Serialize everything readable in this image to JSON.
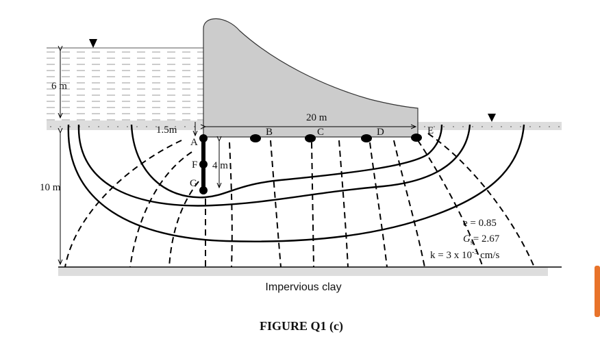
{
  "figure": {
    "labels": {
      "water_depth": "6 m",
      "pile_offset": "1.5m",
      "dam_width": "20 m",
      "pile_depth": "4 m",
      "soil_depth": "10 m"
    },
    "points": [
      "A",
      "B",
      "C",
      "D",
      "E",
      "F",
      "G"
    ],
    "properties": {
      "e": "e = 0.85",
      "gs": {
        "symbol": "G",
        "subscript": "s",
        "rest": "= 2.67"
      },
      "k": {
        "prefix": "k = 3 x 10",
        "superscript": "-3",
        "suffix": " cm/s"
      }
    },
    "base_layer": "Impervious clay",
    "caption": "FIGURE Q1 (c)"
  }
}
